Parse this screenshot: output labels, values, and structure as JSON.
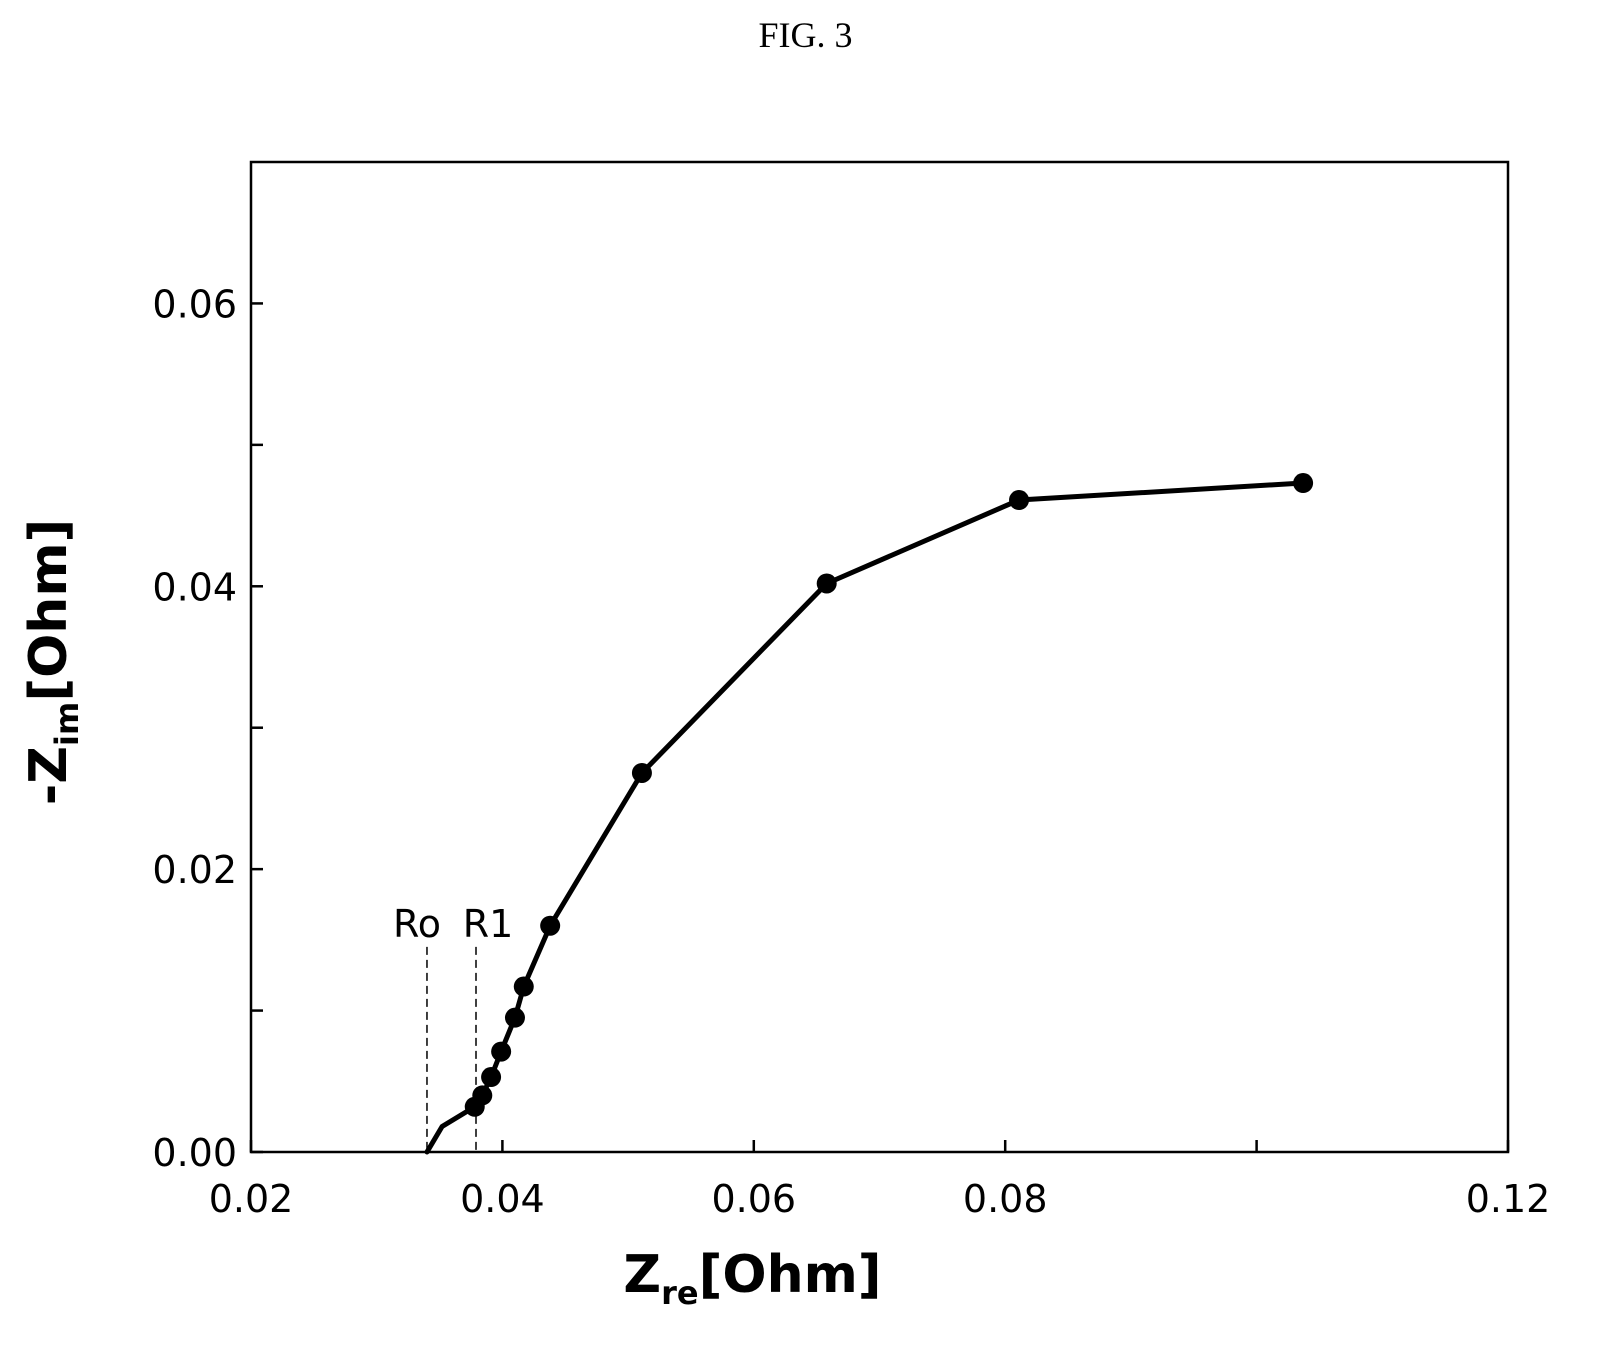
{
  "figure_label": "FIG. 3",
  "chart_data": {
    "type": "line",
    "xlabel_main": "Z",
    "xlabel_sub": "re",
    "xlabel_unit": "[Ohm]",
    "ylabel_prefix": "-Z",
    "ylabel_sub": "im",
    "ylabel_unit": "[Ohm]",
    "xlim": [
      0.02,
      0.12
    ],
    "ylim": [
      0.0,
      0.07
    ],
    "x_ticks": [
      {
        "value": 0.02,
        "label": "0.02"
      },
      {
        "value": 0.04,
        "label": "0.04"
      },
      {
        "value": 0.06,
        "label": "0.06"
      },
      {
        "value": 0.08,
        "label": "0.08"
      },
      {
        "value": 0.1,
        "label": ""
      },
      {
        "value": 0.12,
        "label": "0.12"
      }
    ],
    "y_ticks": [
      {
        "value": 0.0,
        "label": "0.00"
      },
      {
        "value": 0.01,
        "label": ""
      },
      {
        "value": 0.02,
        "label": "0.02"
      },
      {
        "value": 0.03,
        "label": ""
      },
      {
        "value": 0.04,
        "label": "0.04"
      },
      {
        "value": 0.05,
        "label": ""
      },
      {
        "value": 0.06,
        "label": "0.06"
      }
    ],
    "grid": false,
    "series": [
      {
        "line_points": [
          [
            0.034,
            0.0
          ],
          [
            0.0352,
            0.0018
          ],
          [
            0.0378,
            0.0032
          ],
          [
            0.0384,
            0.004
          ],
          [
            0.0391,
            0.0053
          ],
          [
            0.0399,
            0.0071
          ],
          [
            0.041,
            0.0095
          ],
          [
            0.0417,
            0.0117
          ],
          [
            0.0438,
            0.016
          ],
          [
            0.0511,
            0.0268
          ],
          [
            0.0658,
            0.0402
          ],
          [
            0.0811,
            0.0461
          ],
          [
            0.1037,
            0.0473
          ]
        ],
        "markers": [
          [
            0.0378,
            0.0032
          ],
          [
            0.0384,
            0.004
          ],
          [
            0.0391,
            0.0053
          ],
          [
            0.0399,
            0.0071
          ],
          [
            0.041,
            0.0095
          ],
          [
            0.0417,
            0.0117
          ],
          [
            0.0438,
            0.016
          ],
          [
            0.0511,
            0.0268
          ],
          [
            0.0658,
            0.0402
          ],
          [
            0.0811,
            0.0461
          ],
          [
            0.1037,
            0.0473
          ]
        ],
        "color": "#000000"
      }
    ],
    "annotations": [
      {
        "label": "Ro",
        "x": 0.034,
        "y_top": 0.0145
      },
      {
        "label": "R1",
        "x": 0.0379,
        "y_top": 0.0145
      }
    ]
  }
}
